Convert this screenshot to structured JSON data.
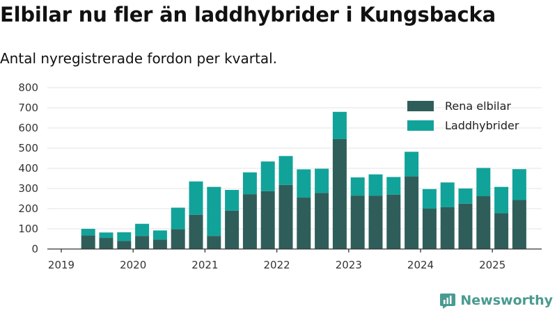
{
  "header": {
    "title": "Elbilar nu fler än laddhybrider i Kungsbacka",
    "subtitle": "Antal nyregistrerade fordon per kvartal."
  },
  "brand": {
    "name": "Newsworthy"
  },
  "colors": {
    "series_1": "#2f5e5a",
    "series_2": "#11a39a",
    "grid": "#e3e3e3",
    "axis": "#333333",
    "brand": "#4a9a91"
  },
  "chart_data": {
    "type": "bar",
    "stacked": true,
    "categories": [
      "2019 Q2",
      "2019 Q3",
      "2019 Q4",
      "2020 Q1",
      "2020 Q2",
      "2020 Q3",
      "2020 Q4",
      "2021 Q1",
      "2021 Q2",
      "2021 Q3",
      "2021 Q4",
      "2022 Q1",
      "2022 Q2",
      "2022 Q3",
      "2022 Q4",
      "2023 Q1",
      "2023 Q2",
      "2023 Q3",
      "2023 Q4",
      "2024 Q1",
      "2024 Q2",
      "2024 Q3",
      "2024 Q4",
      "2025 Q1",
      "2025 Q2"
    ],
    "series": [
      {
        "name": "Rena elbilar",
        "color": "#2f5e5a",
        "values": [
          68,
          55,
          40,
          65,
          47,
          98,
          170,
          65,
          190,
          272,
          287,
          318,
          255,
          278,
          545,
          265,
          265,
          270,
          360,
          200,
          207,
          225,
          262,
          178,
          243
        ]
      },
      {
        "name": "Laddhybrider",
        "color": "#11a39a",
        "values": [
          32,
          27,
          43,
          60,
          45,
          107,
          165,
          243,
          103,
          108,
          147,
          143,
          140,
          120,
          135,
          90,
          105,
          87,
          122,
          97,
          123,
          75,
          140,
          130,
          153
        ]
      }
    ],
    "x_tick_labels": [
      "2019",
      "2020",
      "2021",
      "2022",
      "2023",
      "2024",
      "2025"
    ],
    "y_tick_labels": [
      "0",
      "100",
      "200",
      "300",
      "400",
      "500",
      "600",
      "700",
      "800"
    ],
    "ylim": [
      0,
      800
    ],
    "grid": true,
    "legend_position": "top-right",
    "xlabel": "",
    "ylabel": ""
  }
}
